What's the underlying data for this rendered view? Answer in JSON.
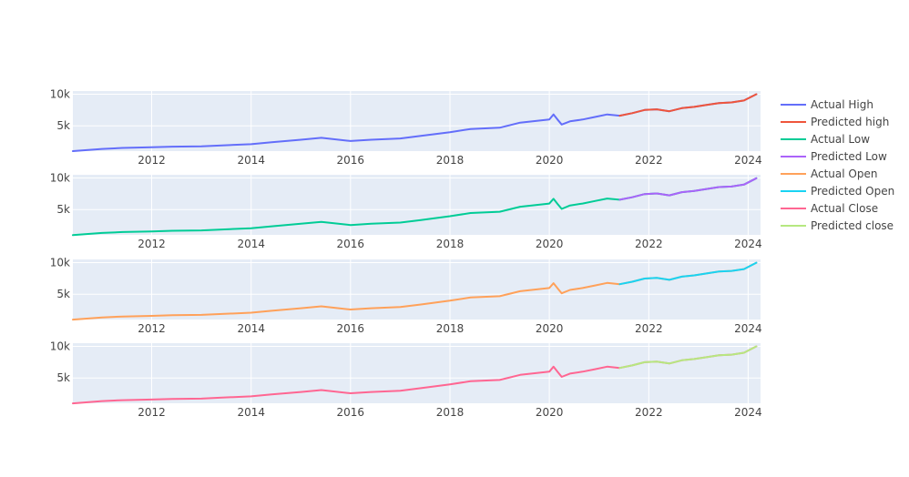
{
  "chart_data": {
    "type": "line",
    "layout": "four vertically stacked subplots sharing a date x-axis",
    "legend": {
      "placement": "top-right, outside plot area",
      "entries": [
        {
          "name": "Actual High",
          "color": "#636efa"
        },
        {
          "name": "Predicted high",
          "color": "#ef553b"
        },
        {
          "name": "Actual Low",
          "color": "#00cc96"
        },
        {
          "name": "Predicted Low",
          "color": "#ab63fa"
        },
        {
          "name": "Actual Open",
          "color": "#ffa15a"
        },
        {
          "name": "Predicted Open",
          "color": "#19d3f3"
        },
        {
          "name": "Actual Close",
          "color": "#ff6692"
        },
        {
          "name": "Predicted close",
          "color": "#b6e880"
        }
      ]
    },
    "grid": true,
    "xaxis": {
      "range": [
        "2010-06-01",
        "2024-04-01"
      ],
      "tick_values": [
        "2012-01-01",
        "2014-01-01",
        "2016-01-01",
        "2018-01-01",
        "2020-01-01",
        "2022-01-01",
        "2024-01-01"
      ],
      "tick_labels": [
        "2012",
        "2014",
        "2016",
        "2018",
        "2020",
        "2022",
        "2024"
      ]
    },
    "yaxis": {
      "range": [
        1000,
        10500
      ],
      "tick_values": [
        5000,
        10000
      ],
      "tick_labels": [
        "5k",
        "10k"
      ]
    },
    "subplots": [
      {
        "name": "High",
        "series": [
          {
            "name": "Actual High",
            "color": "#636efa",
            "x": [
              "2010-06-01",
              "2011-01-01",
              "2011-06-01",
              "2012-01-01",
              "2012-06-01",
              "2013-01-01",
              "2013-06-01",
              "2014-01-01",
              "2014-06-01",
              "2015-01-01",
              "2015-06-01",
              "2016-01-01",
              "2016-06-01",
              "2017-01-01",
              "2017-06-01",
              "2018-01-01",
              "2018-06-01",
              "2019-01-01",
              "2019-06-01",
              "2020-01-01",
              "2020-02-01",
              "2020-03-01",
              "2020-04-01",
              "2020-06-01",
              "2020-09-01",
              "2020-12-01",
              "2021-03-01",
              "2021-06-01",
              "2021-09-01",
              "2021-12-01",
              "2022-03-01",
              "2022-06-01",
              "2022-09-01",
              "2022-12-01",
              "2023-03-01",
              "2023-06-01",
              "2023-09-01",
              "2023-12-01",
              "2024-03-01"
            ],
            "y": [
              1000,
              1350,
              1500,
              1600,
              1700,
              1750,
              1900,
              2100,
              2400,
              2800,
              3100,
              2600,
              2800,
              3000,
              3400,
              4000,
              4500,
              4700,
              5500,
              6000,
              6800,
              6000,
              5200,
              5700,
              6000,
              6400,
              6800,
              6600,
              7000,
              7500,
              7600,
              7300,
              7800,
              8000,
              8300,
              8600,
              8700,
              9000,
              10000
            ]
          },
          {
            "name": "Predicted high",
            "color": "#ef553b",
            "x": [
              "2021-06-01",
              "2021-09-01",
              "2021-12-01",
              "2022-03-01",
              "2022-06-01",
              "2022-09-01",
              "2022-12-01",
              "2023-03-01",
              "2023-06-01",
              "2023-09-01",
              "2023-12-01",
              "2024-03-01"
            ],
            "y": [
              6600,
              7000,
              7500,
              7600,
              7300,
              7800,
              8000,
              8300,
              8600,
              8700,
              9000,
              10000
            ]
          }
        ]
      },
      {
        "name": "Low",
        "series": [
          {
            "name": "Actual Low",
            "color": "#00cc96",
            "x": [
              "2010-06-01",
              "2011-01-01",
              "2011-06-01",
              "2012-01-01",
              "2012-06-01",
              "2013-01-01",
              "2013-06-01",
              "2014-01-01",
              "2014-06-01",
              "2015-01-01",
              "2015-06-01",
              "2016-01-01",
              "2016-06-01",
              "2017-01-01",
              "2017-06-01",
              "2018-01-01",
              "2018-06-01",
              "2019-01-01",
              "2019-06-01",
              "2020-01-01",
              "2020-02-01",
              "2020-03-01",
              "2020-04-01",
              "2020-06-01",
              "2020-09-01",
              "2020-12-01",
              "2021-03-01",
              "2021-06-01",
              "2021-09-01",
              "2021-12-01",
              "2022-03-01",
              "2022-06-01",
              "2022-09-01",
              "2022-12-01",
              "2023-03-01",
              "2023-06-01",
              "2023-09-01",
              "2023-12-01",
              "2024-03-01"
            ],
            "y": [
              950,
              1300,
              1450,
              1550,
              1650,
              1700,
              1850,
              2050,
              2350,
              2750,
              3050,
              2550,
              2750,
              2950,
              3350,
              3950,
              4450,
              4650,
              5450,
              5950,
              6700,
              5900,
              5100,
              5650,
              5950,
              6350,
              6750,
              6550,
              6950,
              7450,
              7550,
              7250,
              7750,
              7950,
              8250,
              8550,
              8650,
              8950,
              9950
            ]
          },
          {
            "name": "Predicted Low",
            "color": "#ab63fa",
            "x": [
              "2021-06-01",
              "2021-09-01",
              "2021-12-01",
              "2022-03-01",
              "2022-06-01",
              "2022-09-01",
              "2022-12-01",
              "2023-03-01",
              "2023-06-01",
              "2023-09-01",
              "2023-12-01",
              "2024-03-01"
            ],
            "y": [
              6550,
              6950,
              7450,
              7550,
              7250,
              7750,
              7950,
              8250,
              8550,
              8650,
              8950,
              9950
            ]
          }
        ]
      },
      {
        "name": "Open",
        "series": [
          {
            "name": "Actual Open",
            "color": "#ffa15a",
            "x": [
              "2010-06-01",
              "2011-01-01",
              "2011-06-01",
              "2012-01-01",
              "2012-06-01",
              "2013-01-01",
              "2013-06-01",
              "2014-01-01",
              "2014-06-01",
              "2015-01-01",
              "2015-06-01",
              "2016-01-01",
              "2016-06-01",
              "2017-01-01",
              "2017-06-01",
              "2018-01-01",
              "2018-06-01",
              "2019-01-01",
              "2019-06-01",
              "2020-01-01",
              "2020-02-01",
              "2020-03-01",
              "2020-04-01",
              "2020-06-01",
              "2020-09-01",
              "2020-12-01",
              "2021-03-01",
              "2021-06-01",
              "2021-09-01",
              "2021-12-01",
              "2022-03-01",
              "2022-06-01",
              "2022-09-01",
              "2022-12-01",
              "2023-03-01",
              "2023-06-01",
              "2023-09-01",
              "2023-12-01",
              "2024-03-01"
            ],
            "y": [
              980,
              1330,
              1480,
              1580,
              1680,
              1730,
              1880,
              2080,
              2380,
              2780,
              3080,
              2580,
              2780,
              2980,
              3380,
              3980,
              4480,
              4680,
              5480,
              5980,
              6750,
              5950,
              5150,
              5680,
              5980,
              6380,
              6780,
              6580,
              6980,
              7480,
              7580,
              7280,
              7780,
              7980,
              8280,
              8580,
              8680,
              8980,
              9980
            ]
          },
          {
            "name": "Predicted Open",
            "color": "#19d3f3",
            "x": [
              "2021-06-01",
              "2021-09-01",
              "2021-12-01",
              "2022-03-01",
              "2022-06-01",
              "2022-09-01",
              "2022-12-01",
              "2023-03-01",
              "2023-06-01",
              "2023-09-01",
              "2023-12-01",
              "2024-03-01"
            ],
            "y": [
              6580,
              6980,
              7480,
              7580,
              7280,
              7780,
              7980,
              8280,
              8580,
              8680,
              8980,
              9980
            ]
          }
        ]
      },
      {
        "name": "Close",
        "series": [
          {
            "name": "Actual Close",
            "color": "#ff6692",
            "x": [
              "2010-06-01",
              "2011-01-01",
              "2011-06-01",
              "2012-01-01",
              "2012-06-01",
              "2013-01-01",
              "2013-06-01",
              "2014-01-01",
              "2014-06-01",
              "2015-01-01",
              "2015-06-01",
              "2016-01-01",
              "2016-06-01",
              "2017-01-01",
              "2017-06-01",
              "2018-01-01",
              "2018-06-01",
              "2019-01-01",
              "2019-06-01",
              "2020-01-01",
              "2020-02-01",
              "2020-03-01",
              "2020-04-01",
              "2020-06-01",
              "2020-09-01",
              "2020-12-01",
              "2021-03-01",
              "2021-06-01",
              "2021-09-01",
              "2021-12-01",
              "2022-03-01",
              "2022-06-01",
              "2022-09-01",
              "2022-12-01",
              "2023-03-01",
              "2023-06-01",
              "2023-09-01",
              "2023-12-01",
              "2024-03-01"
            ],
            "y": [
              990,
              1340,
              1490,
              1590,
              1690,
              1740,
              1890,
              2090,
              2390,
              2790,
              3090,
              2590,
              2790,
              2990,
              3390,
              3990,
              4490,
              4690,
              5490,
              5990,
              6780,
              5980,
              5180,
              5690,
              5990,
              6390,
              6790,
              6590,
              6990,
              7490,
              7590,
              7290,
              7790,
              7990,
              8290,
              8590,
              8690,
              8990,
              9990
            ]
          },
          {
            "name": "Predicted close",
            "color": "#b6e880",
            "x": [
              "2021-06-01",
              "2021-09-01",
              "2021-12-01",
              "2022-03-01",
              "2022-06-01",
              "2022-09-01",
              "2022-12-01",
              "2023-03-01",
              "2023-06-01",
              "2023-09-01",
              "2023-12-01",
              "2024-03-01"
            ],
            "y": [
              6590,
              6990,
              7490,
              7590,
              7290,
              7790,
              7990,
              8290,
              8590,
              8690,
              8990,
              9990
            ]
          }
        ]
      }
    ]
  }
}
